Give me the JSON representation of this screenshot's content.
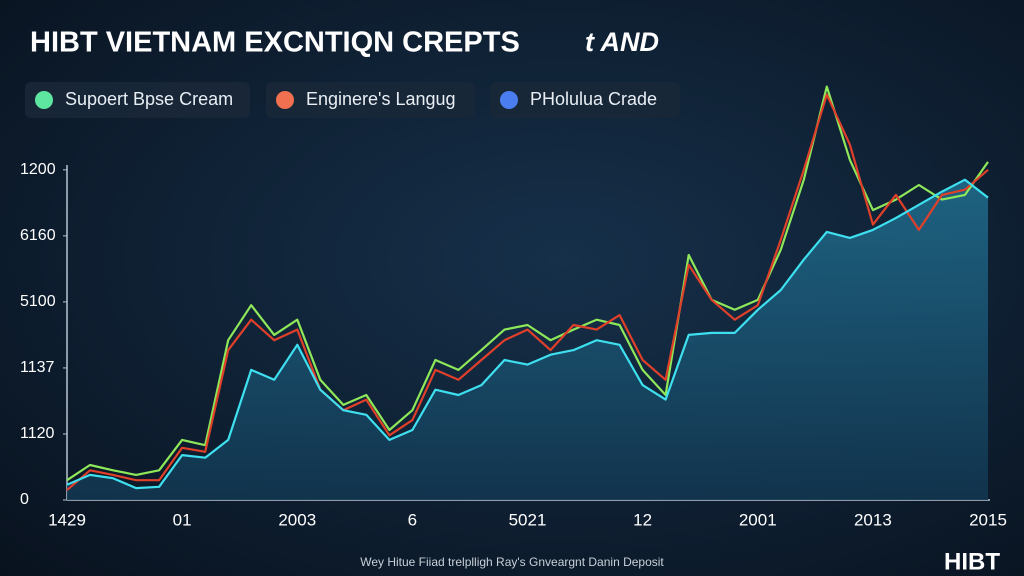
{
  "chart_data": {
    "type": "line",
    "title": "HIBT VIETNAM EXCNTIQN CREPTS",
    "title_suffix": "t AND",
    "footer": "Wey Hitue Fiiad trelplligh Ray's Gnveargnt Danin Deposit",
    "brand": "HIBT",
    "x_labels": [
      "1429",
      "01",
      "2003",
      "6",
      "5021",
      "12",
      "2001",
      "2013",
      "2015"
    ],
    "ylim": [
      0,
      6.3
    ],
    "yticks": [
      {
        "value": 0,
        "label": "0"
      },
      {
        "value": 1,
        "label": "1120"
      },
      {
        "value": 2,
        "label": "1137"
      },
      {
        "value": 3,
        "label": "5100"
      },
      {
        "value": 4,
        "label": "6160"
      },
      {
        "value": 5,
        "label": "1200"
      }
    ],
    "area_series": 2,
    "series": [
      {
        "name": "Supoert Bpse Cream",
        "color": "#8ee85a",
        "legend_color": "#5ee6a0",
        "values": [
          0.3,
          0.53,
          0.45,
          0.38,
          0.45,
          0.91,
          0.83,
          2.42,
          2.95,
          2.5,
          2.73,
          1.82,
          1.44,
          1.59,
          1.06,
          1.36,
          2.12,
          1.97,
          2.27,
          2.58,
          2.65,
          2.42,
          2.58,
          2.73,
          2.65,
          1.97,
          1.59,
          3.71,
          3.03,
          2.88,
          3.03,
          3.79,
          4.85,
          6.26,
          5.15,
          4.39,
          4.55,
          4.77,
          4.55,
          4.62,
          5.12
        ]
      },
      {
        "name": "Enginere's Langug",
        "color": "#e0402a",
        "legend_color": "#f07050",
        "values": [
          0.15,
          0.45,
          0.38,
          0.3,
          0.3,
          0.79,
          0.73,
          2.27,
          2.73,
          2.42,
          2.58,
          1.67,
          1.36,
          1.52,
          0.98,
          1.21,
          1.97,
          1.82,
          2.12,
          2.42,
          2.58,
          2.27,
          2.65,
          2.58,
          2.8,
          2.12,
          1.82,
          3.56,
          3.03,
          2.73,
          2.95,
          3.94,
          5,
          6.14,
          5.38,
          4.17,
          4.62,
          4.09,
          4.62,
          4.7,
          5
        ]
      },
      {
        "name": "PHolulua Crade",
        "color": "#3ee0f0",
        "legend_color": "#4a7ef0",
        "values": [
          0.23,
          0.38,
          0.33,
          0.18,
          0.2,
          0.68,
          0.64,
          0.91,
          1.97,
          1.82,
          2.35,
          1.67,
          1.36,
          1.29,
          0.91,
          1.06,
          1.67,
          1.59,
          1.74,
          2.12,
          2.05,
          2.2,
          2.27,
          2.42,
          2.35,
          1.74,
          1.52,
          2.5,
          2.53,
          2.53,
          2.88,
          3.18,
          3.64,
          4.06,
          3.97,
          4.09,
          4.27,
          4.47,
          4.67,
          4.85,
          4.58
        ]
      }
    ]
  }
}
